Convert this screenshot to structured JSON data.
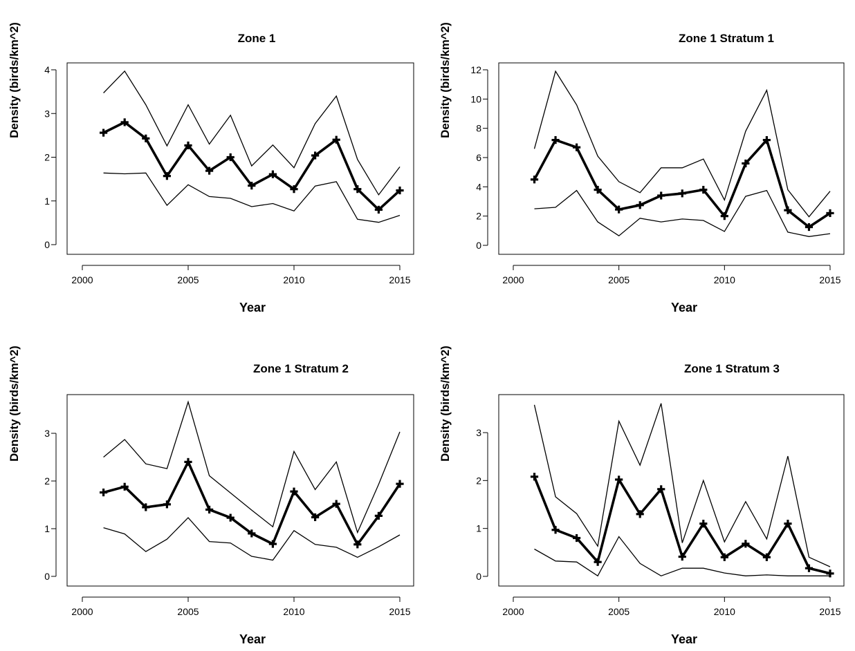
{
  "chart_data": [
    {
      "type": "line",
      "title": "Zone 1",
      "xlabel": "Year",
      "ylabel": "Density (birds/km^2)",
      "xlim": [
        1999.5,
        2015.5
      ],
      "ylim": [
        0,
        4
      ],
      "x_ticks": [
        2000,
        2005,
        2010,
        2015
      ],
      "y_ticks": [
        0,
        1,
        2,
        3,
        4
      ],
      "grid": false,
      "x": [
        2001,
        2002,
        2003,
        2004,
        2005,
        2006,
        2007,
        2008,
        2009,
        2010,
        2011,
        2012,
        2013,
        2014,
        2015
      ],
      "series": [
        {
          "values": [
            2.56,
            2.8,
            2.43,
            1.57,
            2.27,
            1.69,
            2.0,
            1.35,
            1.61,
            1.27,
            2.04,
            2.4,
            1.27,
            0.8,
            1.24
          ]
        },
        {
          "values": [
            3.47,
            3.97,
            3.2,
            2.26,
            3.2,
            2.3,
            2.96,
            1.8,
            2.28,
            1.76,
            2.77,
            3.4,
            1.95,
            1.14,
            1.78
          ]
        },
        {
          "values": [
            1.64,
            1.62,
            1.64,
            0.9,
            1.37,
            1.1,
            1.06,
            0.87,
            0.94,
            0.77,
            1.34,
            1.44,
            0.58,
            0.51,
            0.67
          ]
        }
      ]
    },
    {
      "type": "line",
      "title": "Zone 1  Stratum 1",
      "xlabel": "Year",
      "ylabel": "Density (birds/km^2)",
      "xlim": [
        1999.5,
        2015.5
      ],
      "ylim": [
        0,
        12
      ],
      "x_ticks": [
        2000,
        2005,
        2010,
        2015
      ],
      "y_ticks": [
        0,
        2,
        4,
        6,
        8,
        10,
        12
      ],
      "grid": false,
      "x": [
        2001,
        2002,
        2003,
        2004,
        2005,
        2006,
        2007,
        2008,
        2009,
        2010,
        2011,
        2012,
        2013,
        2014,
        2015
      ],
      "series": [
        {
          "values": [
            4.5,
            7.2,
            6.7,
            3.8,
            2.45,
            2.75,
            3.4,
            3.55,
            3.8,
            2.0,
            5.6,
            7.2,
            2.4,
            1.25,
            2.2
          ]
        },
        {
          "values": [
            6.6,
            11.9,
            9.6,
            6.1,
            4.35,
            3.6,
            5.3,
            5.3,
            5.9,
            3.1,
            7.8,
            10.6,
            3.8,
            1.95,
            3.7
          ]
        },
        {
          "values": [
            2.5,
            2.6,
            3.75,
            1.6,
            0.65,
            1.85,
            1.6,
            1.8,
            1.7,
            0.95,
            3.35,
            3.75,
            0.9,
            0.6,
            0.8
          ]
        }
      ]
    },
    {
      "type": "line",
      "title": "Zone 1  Stratum 2",
      "xlabel": "Year",
      "ylabel": "Density (birds/km^2)",
      "xlim": [
        1999.5,
        2015.5
      ],
      "ylim": [
        0,
        3
      ],
      "x_ticks": [
        2000,
        2005,
        2010,
        2015
      ],
      "y_ticks": [
        0,
        1,
        2,
        3
      ],
      "grid": false,
      "x": [
        2001,
        2002,
        2003,
        2004,
        2005,
        2006,
        2007,
        2008,
        2009,
        2010,
        2011,
        2012,
        2013,
        2014,
        2015
      ],
      "series": [
        {
          "values": [
            1.76,
            1.88,
            1.45,
            1.51,
            2.4,
            1.4,
            1.23,
            0.9,
            0.68,
            1.78,
            1.24,
            1.52,
            0.67,
            1.27,
            1.94
          ]
        },
        {
          "values": [
            2.5,
            2.87,
            2.36,
            2.26,
            3.66,
            2.11,
            1.75,
            1.39,
            1.04,
            2.62,
            1.82,
            2.4,
            0.92,
            1.93,
            3.03
          ]
        },
        {
          "values": [
            1.02,
            0.89,
            0.52,
            0.78,
            1.23,
            0.73,
            0.7,
            0.42,
            0.34,
            0.96,
            0.67,
            0.61,
            0.4,
            0.62,
            0.87
          ]
        }
      ]
    },
    {
      "type": "line",
      "title": "Zone 1  Stratum 3",
      "xlabel": "Year",
      "ylabel": "Density (birds/km^2)",
      "xlim": [
        1999.5,
        2015.5
      ],
      "ylim": [
        0,
        3
      ],
      "x_ticks": [
        2000,
        2005,
        2010,
        2015
      ],
      "y_ticks": [
        0,
        1,
        2,
        3
      ],
      "grid": false,
      "x": [
        2001,
        2002,
        2003,
        2004,
        2005,
        2006,
        2007,
        2008,
        2009,
        2010,
        2011,
        2012,
        2013,
        2014,
        2015
      ],
      "series": [
        {
          "values": [
            2.08,
            0.97,
            0.8,
            0.3,
            2.02,
            1.3,
            1.82,
            0.41,
            1.1,
            0.4,
            0.68,
            0.4,
            1.1,
            0.17,
            0.06
          ]
        },
        {
          "values": [
            3.58,
            1.66,
            1.31,
            0.63,
            3.24,
            2.32,
            3.61,
            0.7,
            2.0,
            0.72,
            1.56,
            0.78,
            2.51,
            0.4,
            0.2
          ]
        },
        {
          "values": [
            0.57,
            0.32,
            0.3,
            0.01,
            0.83,
            0.27,
            0.01,
            0.17,
            0.17,
            0.07,
            0.01,
            0.03,
            0.01,
            0.01,
            0.01
          ]
        }
      ]
    }
  ]
}
